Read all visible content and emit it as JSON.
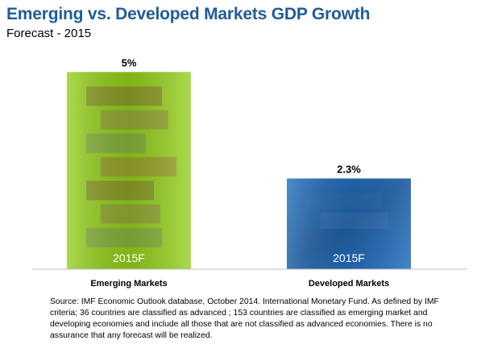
{
  "title": "Emerging vs. Developed Markets GDP Growth",
  "subtitle": "Forecast - 2015",
  "chart_data": {
    "type": "bar",
    "categories": [
      "Emerging Markets",
      "Developed Markets"
    ],
    "values": [
      5,
      2.3
    ],
    "data_labels": [
      "5%",
      "2.3%"
    ],
    "bar_labels": [
      "2015F",
      "2015F"
    ],
    "colors": [
      "#8cc21a",
      "#1f62a8"
    ],
    "ylim": [
      0,
      5.6
    ],
    "grid": false,
    "legend": "none"
  },
  "source": "Source: IMF Economic Outlook database, October 2014. International Monetary Fund. As defined by IMF criteria; 36 countries are classified as advanced ; 153 countries are classified as emerging market and developing economies and include all those that are not classified as advanced economies. There is no assurance that any forecast will be realized."
}
